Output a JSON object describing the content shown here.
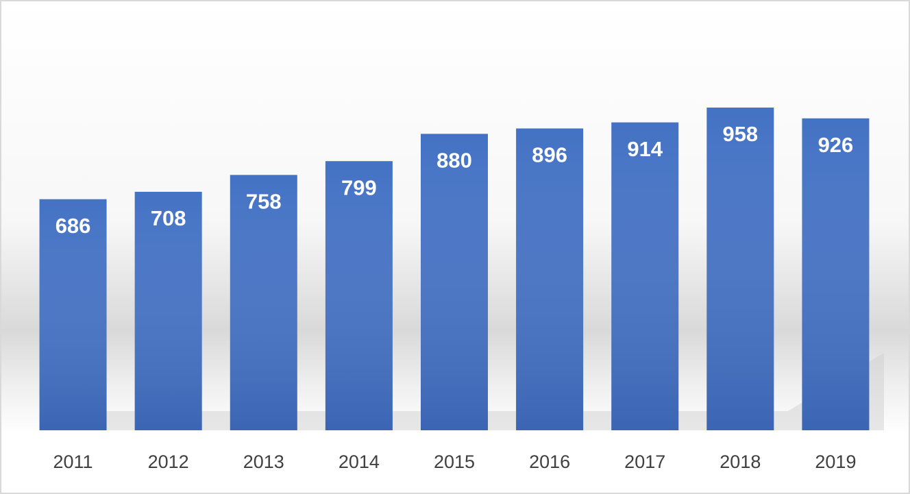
{
  "chart_data": {
    "type": "bar",
    "categories": [
      "2011",
      "2012",
      "2013",
      "2014",
      "2015",
      "2016",
      "2017",
      "2018",
      "2019"
    ],
    "values": [
      686,
      708,
      758,
      799,
      880,
      896,
      914,
      958,
      926
    ],
    "color": "#4472c4"
  }
}
